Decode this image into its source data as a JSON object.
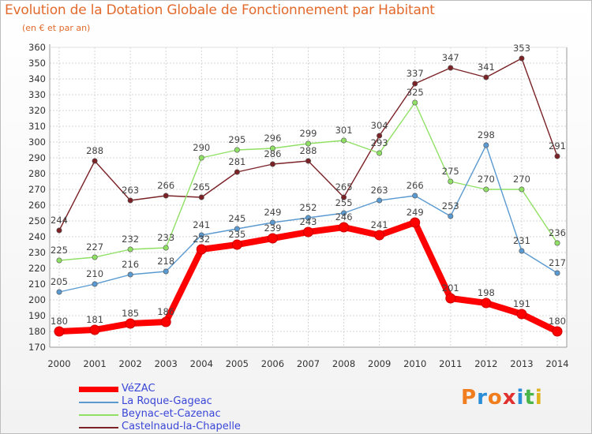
{
  "title": "Evolution de la Dotation Globale de Fonctionnement par Habitant",
  "subtitle": "(en € et par an)",
  "brand": {
    "letters": [
      "P",
      "r",
      "o",
      "x",
      "i",
      "t",
      "i"
    ],
    "colors": [
      "#f07d1e",
      "#2a8dd8",
      "#f07d1e",
      "#e0312f",
      "#2a8dd8",
      "#4ab64a",
      "#e0b21c"
    ]
  },
  "chart_data": {
    "type": "line",
    "x": [
      "2000",
      "2001",
      "2002",
      "2003",
      "2004",
      "2005",
      "2006",
      "2007",
      "2008",
      "2009",
      "2010",
      "2011",
      "2012",
      "2013",
      "2014"
    ],
    "ylim": [
      170,
      360
    ],
    "yticks": [
      "170",
      "180",
      "190",
      "200",
      "210",
      "220",
      "230",
      "240",
      "250",
      "260",
      "270",
      "280",
      "290",
      "300",
      "310",
      "320",
      "330",
      "340",
      "350",
      "360"
    ],
    "grid": true,
    "legend_position": "bottom-left",
    "series": [
      {
        "name": "VéZAC",
        "color": "#ff0000",
        "values": [
          180,
          181,
          185,
          186,
          232,
          235,
          239,
          243,
          246,
          241,
          249,
          201,
          198,
          191,
          180
        ],
        "labels": [
          "180",
          "181",
          "185",
          "186",
          "232",
          "235",
          "239",
          "243",
          "246",
          "241",
          "249",
          "201",
          "198",
          "191",
          "180"
        ]
      },
      {
        "name": "La Roque-Gageac",
        "color": "#5a9ad0",
        "values": [
          205,
          210,
          216,
          218,
          241,
          245,
          249,
          252,
          255,
          263,
          266,
          253,
          298,
          231,
          217
        ],
        "labels": [
          "205",
          "210",
          "216",
          "218",
          "241",
          "245",
          "249",
          "252",
          "255",
          "263",
          "266",
          "253",
          "298",
          "231",
          "217"
        ]
      },
      {
        "name": "Beynac-et-Cazenac",
        "color": "#8fe064",
        "values": [
          225,
          227,
          232,
          233,
          290,
          295,
          296,
          299,
          301,
          293,
          325,
          275,
          270,
          270,
          236
        ],
        "labels": [
          "225",
          "227",
          "232",
          "233",
          "290",
          "295",
          "296",
          "299",
          "301",
          "293",
          "325",
          "275",
          "270",
          "270",
          "236"
        ]
      },
      {
        "name": "Castelnaud-la-Chapelle",
        "color": "#7a2226",
        "values": [
          244,
          288,
          263,
          266,
          265,
          281,
          286,
          288,
          265,
          304,
          337,
          347,
          341,
          353,
          291
        ],
        "labels": [
          "244",
          "288",
          "263",
          "266",
          "265",
          "281",
          "286",
          "288",
          "265",
          "304",
          "337",
          "347",
          "341",
          "353",
          "291"
        ]
      }
    ]
  }
}
